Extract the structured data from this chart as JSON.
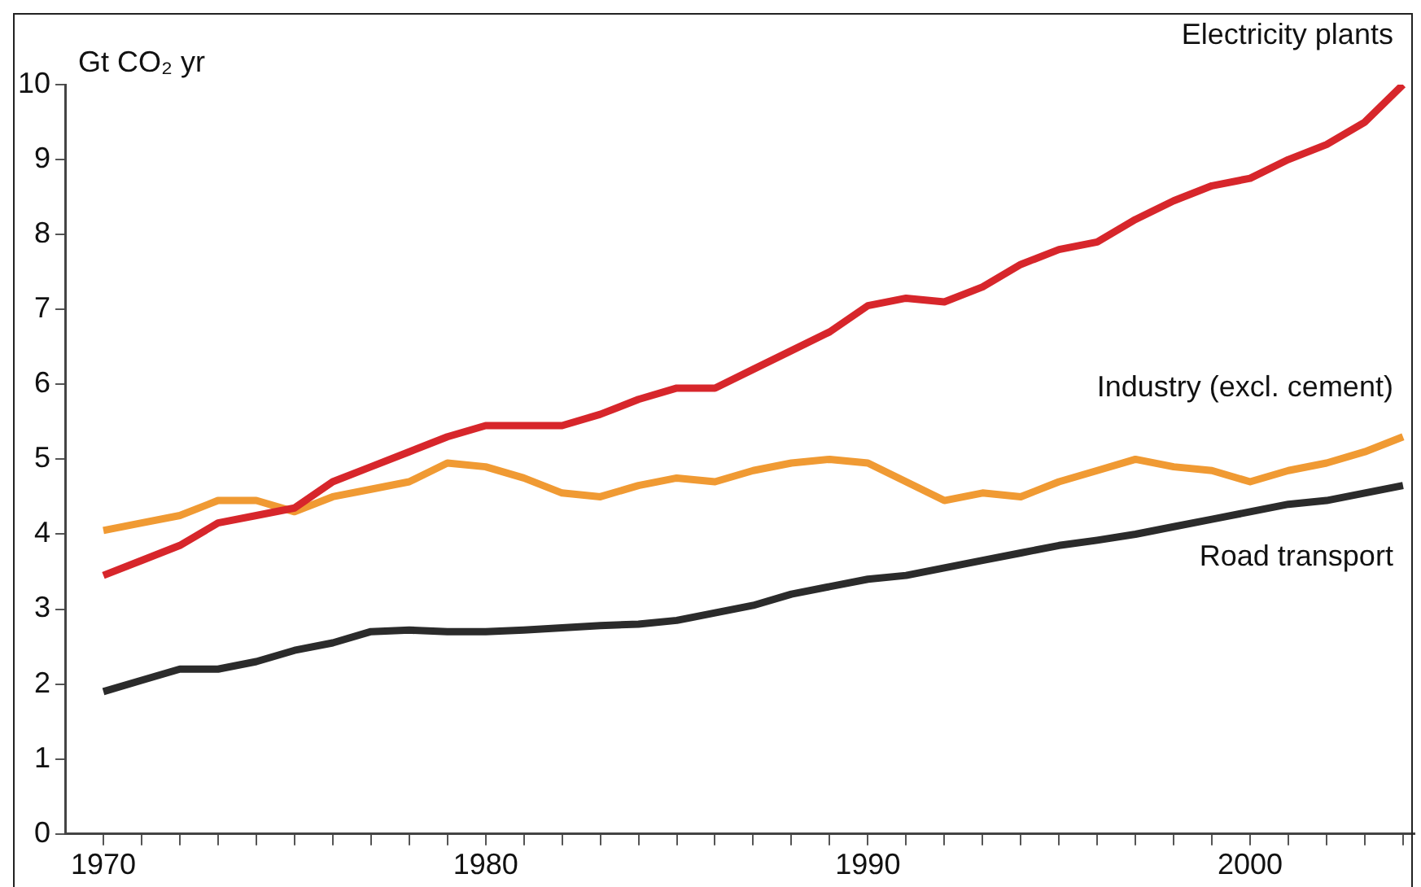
{
  "chart_data": {
    "type": "line",
    "ylabel": "Gt CO₂ yr",
    "x": [
      1970,
      1971,
      1972,
      1973,
      1974,
      1975,
      1976,
      1977,
      1978,
      1979,
      1980,
      1981,
      1982,
      1983,
      1984,
      1985,
      1986,
      1987,
      1988,
      1989,
      1990,
      1991,
      1992,
      1993,
      1994,
      1995,
      1996,
      1997,
      1998,
      1999,
      2000,
      2001,
      2002,
      2003,
      2004
    ],
    "series": [
      {
        "name": "Electricity plants",
        "color": "#d7262b",
        "values": [
          3.45,
          3.65,
          3.85,
          4.15,
          4.25,
          4.35,
          4.7,
          4.9,
          5.1,
          5.3,
          5.45,
          5.45,
          5.45,
          5.6,
          5.8,
          5.95,
          5.95,
          6.2,
          6.45,
          6.7,
          7.05,
          7.15,
          7.1,
          7.3,
          7.6,
          7.8,
          7.9,
          8.2,
          8.45,
          8.65,
          8.75,
          9.0,
          9.2,
          9.5,
          10.0
        ]
      },
      {
        "name": "Industry (excl. cement)",
        "color": "#f09a33",
        "values": [
          4.05,
          4.15,
          4.25,
          4.45,
          4.45,
          4.3,
          4.5,
          4.6,
          4.7,
          4.95,
          4.9,
          4.75,
          4.55,
          4.5,
          4.65,
          4.75,
          4.7,
          4.85,
          4.95,
          5.0,
          4.95,
          4.7,
          4.45,
          4.55,
          4.5,
          4.7,
          4.85,
          5.0,
          4.9,
          4.85,
          4.7,
          4.85,
          4.95,
          5.1,
          5.3
        ]
      },
      {
        "name": "Road transport",
        "color": "#2b2b2b",
        "values": [
          1.9,
          2.05,
          2.2,
          2.2,
          2.3,
          2.45,
          2.55,
          2.7,
          2.72,
          2.7,
          2.7,
          2.72,
          2.75,
          2.78,
          2.8,
          2.85,
          2.95,
          3.05,
          3.2,
          3.3,
          3.4,
          3.45,
          3.55,
          3.65,
          3.75,
          3.85,
          3.92,
          4.0,
          4.1,
          4.2,
          4.3,
          4.4,
          4.45,
          4.55,
          4.65
        ]
      }
    ],
    "xlim": [
      1969,
      2004.3
    ],
    "xticks": [
      1970,
      {
        "value": 1971,
        "label": null
      },
      {
        "value": 1972,
        "label": null
      },
      {
        "value": 1973,
        "label": null
      },
      {
        "value": 1974,
        "label": null
      },
      {
        "value": 1975,
        "label": null
      },
      {
        "value": 1976,
        "label": null
      },
      {
        "value": 1977,
        "label": null
      },
      {
        "value": 1978,
        "label": null
      },
      {
        "value": 1979,
        "label": null
      },
      1980,
      {
        "value": 1981,
        "label": null
      },
      {
        "value": 1982,
        "label": null
      },
      {
        "value": 1983,
        "label": null
      },
      {
        "value": 1984,
        "label": null
      },
      {
        "value": 1985,
        "label": null
      },
      {
        "value": 1986,
        "label": null
      },
      {
        "value": 1987,
        "label": null
      },
      {
        "value": 1988,
        "label": null
      },
      {
        "value": 1989,
        "label": null
      },
      1990,
      {
        "value": 1991,
        "label": null
      },
      {
        "value": 1992,
        "label": null
      },
      {
        "value": 1993,
        "label": null
      },
      {
        "value": 1994,
        "label": null
      },
      {
        "value": 1995,
        "label": null
      },
      {
        "value": 1996,
        "label": null
      },
      {
        "value": 1997,
        "label": null
      },
      {
        "value": 1998,
        "label": null
      },
      {
        "value": 1999,
        "label": null
      },
      2000,
      {
        "value": 2001,
        "label": null
      },
      {
        "value": 2002,
        "label": null
      },
      {
        "value": 2003,
        "label": null
      },
      {
        "value": 2004,
        "label": null
      }
    ],
    "ylim": [
      0,
      10
    ],
    "yticks": [
      0,
      1,
      2,
      3,
      4,
      5,
      6,
      7,
      8,
      9,
      10
    ],
    "grid": false,
    "legend": false,
    "marker": "none",
    "line_style": "solid"
  }
}
